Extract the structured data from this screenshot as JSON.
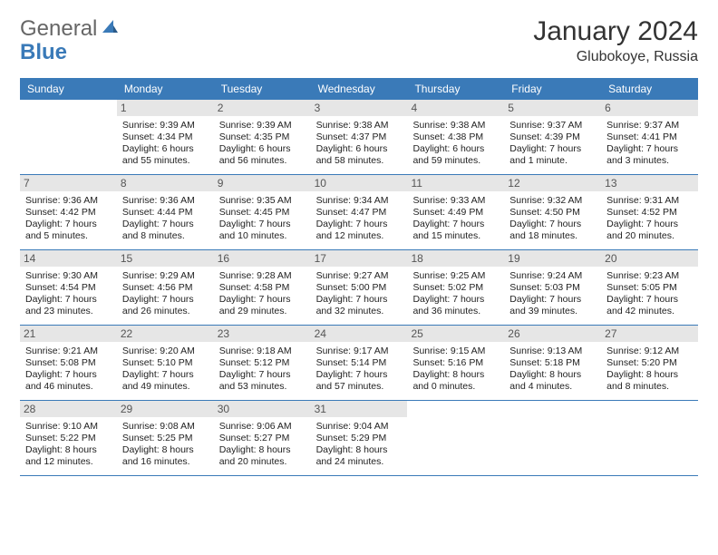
{
  "logo": {
    "text1": "General",
    "text2": "Blue"
  },
  "title": "January 2024",
  "location": "Glubokoye, Russia",
  "colors": {
    "brand_blue": "#3a7ab8",
    "daynum_bg": "#e6e6e6",
    "page_bg": "#ffffff",
    "text": "#222222"
  },
  "day_headers": [
    "Sunday",
    "Monday",
    "Tuesday",
    "Wednesday",
    "Thursday",
    "Friday",
    "Saturday"
  ],
  "weeks": [
    [
      {
        "n": "",
        "sr": "",
        "ss": "",
        "dl": ""
      },
      {
        "n": "1",
        "sr": "Sunrise: 9:39 AM",
        "ss": "Sunset: 4:34 PM",
        "dl": "Daylight: 6 hours and 55 minutes."
      },
      {
        "n": "2",
        "sr": "Sunrise: 9:39 AM",
        "ss": "Sunset: 4:35 PM",
        "dl": "Daylight: 6 hours and 56 minutes."
      },
      {
        "n": "3",
        "sr": "Sunrise: 9:38 AM",
        "ss": "Sunset: 4:37 PM",
        "dl": "Daylight: 6 hours and 58 minutes."
      },
      {
        "n": "4",
        "sr": "Sunrise: 9:38 AM",
        "ss": "Sunset: 4:38 PM",
        "dl": "Daylight: 6 hours and 59 minutes."
      },
      {
        "n": "5",
        "sr": "Sunrise: 9:37 AM",
        "ss": "Sunset: 4:39 PM",
        "dl": "Daylight: 7 hours and 1 minute."
      },
      {
        "n": "6",
        "sr": "Sunrise: 9:37 AM",
        "ss": "Sunset: 4:41 PM",
        "dl": "Daylight: 7 hours and 3 minutes."
      }
    ],
    [
      {
        "n": "7",
        "sr": "Sunrise: 9:36 AM",
        "ss": "Sunset: 4:42 PM",
        "dl": "Daylight: 7 hours and 5 minutes."
      },
      {
        "n": "8",
        "sr": "Sunrise: 9:36 AM",
        "ss": "Sunset: 4:44 PM",
        "dl": "Daylight: 7 hours and 8 minutes."
      },
      {
        "n": "9",
        "sr": "Sunrise: 9:35 AM",
        "ss": "Sunset: 4:45 PM",
        "dl": "Daylight: 7 hours and 10 minutes."
      },
      {
        "n": "10",
        "sr": "Sunrise: 9:34 AM",
        "ss": "Sunset: 4:47 PM",
        "dl": "Daylight: 7 hours and 12 minutes."
      },
      {
        "n": "11",
        "sr": "Sunrise: 9:33 AM",
        "ss": "Sunset: 4:49 PM",
        "dl": "Daylight: 7 hours and 15 minutes."
      },
      {
        "n": "12",
        "sr": "Sunrise: 9:32 AM",
        "ss": "Sunset: 4:50 PM",
        "dl": "Daylight: 7 hours and 18 minutes."
      },
      {
        "n": "13",
        "sr": "Sunrise: 9:31 AM",
        "ss": "Sunset: 4:52 PM",
        "dl": "Daylight: 7 hours and 20 minutes."
      }
    ],
    [
      {
        "n": "14",
        "sr": "Sunrise: 9:30 AM",
        "ss": "Sunset: 4:54 PM",
        "dl": "Daylight: 7 hours and 23 minutes."
      },
      {
        "n": "15",
        "sr": "Sunrise: 9:29 AM",
        "ss": "Sunset: 4:56 PM",
        "dl": "Daylight: 7 hours and 26 minutes."
      },
      {
        "n": "16",
        "sr": "Sunrise: 9:28 AM",
        "ss": "Sunset: 4:58 PM",
        "dl": "Daylight: 7 hours and 29 minutes."
      },
      {
        "n": "17",
        "sr": "Sunrise: 9:27 AM",
        "ss": "Sunset: 5:00 PM",
        "dl": "Daylight: 7 hours and 32 minutes."
      },
      {
        "n": "18",
        "sr": "Sunrise: 9:25 AM",
        "ss": "Sunset: 5:02 PM",
        "dl": "Daylight: 7 hours and 36 minutes."
      },
      {
        "n": "19",
        "sr": "Sunrise: 9:24 AM",
        "ss": "Sunset: 5:03 PM",
        "dl": "Daylight: 7 hours and 39 minutes."
      },
      {
        "n": "20",
        "sr": "Sunrise: 9:23 AM",
        "ss": "Sunset: 5:05 PM",
        "dl": "Daylight: 7 hours and 42 minutes."
      }
    ],
    [
      {
        "n": "21",
        "sr": "Sunrise: 9:21 AM",
        "ss": "Sunset: 5:08 PM",
        "dl": "Daylight: 7 hours and 46 minutes."
      },
      {
        "n": "22",
        "sr": "Sunrise: 9:20 AM",
        "ss": "Sunset: 5:10 PM",
        "dl": "Daylight: 7 hours and 49 minutes."
      },
      {
        "n": "23",
        "sr": "Sunrise: 9:18 AM",
        "ss": "Sunset: 5:12 PM",
        "dl": "Daylight: 7 hours and 53 minutes."
      },
      {
        "n": "24",
        "sr": "Sunrise: 9:17 AM",
        "ss": "Sunset: 5:14 PM",
        "dl": "Daylight: 7 hours and 57 minutes."
      },
      {
        "n": "25",
        "sr": "Sunrise: 9:15 AM",
        "ss": "Sunset: 5:16 PM",
        "dl": "Daylight: 8 hours and 0 minutes."
      },
      {
        "n": "26",
        "sr": "Sunrise: 9:13 AM",
        "ss": "Sunset: 5:18 PM",
        "dl": "Daylight: 8 hours and 4 minutes."
      },
      {
        "n": "27",
        "sr": "Sunrise: 9:12 AM",
        "ss": "Sunset: 5:20 PM",
        "dl": "Daylight: 8 hours and 8 minutes."
      }
    ],
    [
      {
        "n": "28",
        "sr": "Sunrise: 9:10 AM",
        "ss": "Sunset: 5:22 PM",
        "dl": "Daylight: 8 hours and 12 minutes."
      },
      {
        "n": "29",
        "sr": "Sunrise: 9:08 AM",
        "ss": "Sunset: 5:25 PM",
        "dl": "Daylight: 8 hours and 16 minutes."
      },
      {
        "n": "30",
        "sr": "Sunrise: 9:06 AM",
        "ss": "Sunset: 5:27 PM",
        "dl": "Daylight: 8 hours and 20 minutes."
      },
      {
        "n": "31",
        "sr": "Sunrise: 9:04 AM",
        "ss": "Sunset: 5:29 PM",
        "dl": "Daylight: 8 hours and 24 minutes."
      },
      {
        "n": "",
        "sr": "",
        "ss": "",
        "dl": ""
      },
      {
        "n": "",
        "sr": "",
        "ss": "",
        "dl": ""
      },
      {
        "n": "",
        "sr": "",
        "ss": "",
        "dl": ""
      }
    ]
  ]
}
